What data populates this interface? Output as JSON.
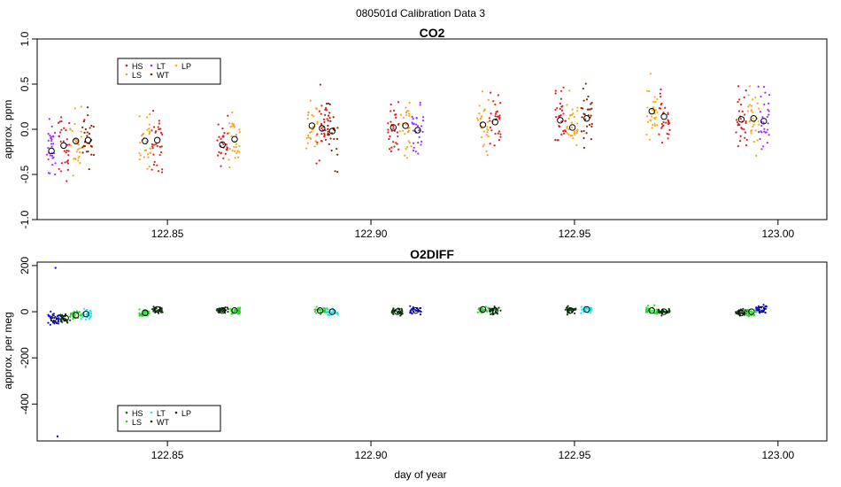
{
  "title": "080501d   Calibration Data 3",
  "xlabel": "day of year",
  "chart_data": [
    {
      "type": "scatter",
      "title": "CO2",
      "ylabel": "approx. ppm",
      "xlim": [
        122.818,
        123.012
      ],
      "ylim": [
        -1.0,
        1.0
      ],
      "xticks": [
        "122.85",
        "122.90",
        "122.95",
        "123.00"
      ],
      "xtick_values": [
        122.85,
        122.9,
        122.95,
        123.0
      ],
      "yticks": [
        "-1.0",
        "-0.5",
        "0.0",
        "0.5",
        "1.0"
      ],
      "ytick_values": [
        -1.0,
        -0.5,
        0.0,
        0.5,
        1.0
      ],
      "legend": {
        "placement": "top-left",
        "entries": [
          {
            "label": "HS",
            "color": "#e41a1c"
          },
          {
            "label": "LS",
            "color": "#f5a623"
          },
          {
            "label": "LT",
            "color": "#9b30ff"
          },
          {
            "label": "WT",
            "color": "#8b2500"
          },
          {
            "label": "LP",
            "color": "#ffb000"
          }
        ]
      },
      "groups": [
        {
          "x": 122.8215,
          "y": -0.24,
          "spread": 0.28,
          "color": "#9b30ff"
        },
        {
          "x": 122.8245,
          "y": -0.18,
          "spread": 0.32,
          "color": "#e41a1c"
        },
        {
          "x": 122.8275,
          "y": -0.13,
          "spread": 0.3,
          "color": "#f5a623"
        },
        {
          "x": 122.8305,
          "y": -0.12,
          "spread": 0.28,
          "color": "#8b2500"
        },
        {
          "x": 122.8445,
          "y": -0.13,
          "spread": 0.32,
          "color": "#f5a623"
        },
        {
          "x": 122.8475,
          "y": -0.12,
          "spread": 0.28,
          "color": "#e41a1c"
        },
        {
          "x": 122.8635,
          "y": -0.17,
          "spread": 0.28,
          "color": "#e41a1c"
        },
        {
          "x": 122.8665,
          "y": -0.11,
          "spread": 0.25,
          "color": "#f5a623"
        },
        {
          "x": 122.8855,
          "y": 0.04,
          "spread": 0.3,
          "color": "#f5a623"
        },
        {
          "x": 122.888,
          "y": 0.01,
          "spread": 0.33,
          "color": "#e41a1c"
        },
        {
          "x": 122.8905,
          "y": -0.02,
          "spread": 0.32,
          "color": "#8b2500"
        },
        {
          "x": 122.9055,
          "y": 0.02,
          "spread": 0.28,
          "color": "#e41a1c"
        },
        {
          "x": 122.9085,
          "y": 0.04,
          "spread": 0.3,
          "color": "#f5a623"
        },
        {
          "x": 122.9115,
          "y": -0.01,
          "spread": 0.28,
          "color": "#9b30ff"
        },
        {
          "x": 122.9275,
          "y": 0.05,
          "spread": 0.3,
          "color": "#f5a623"
        },
        {
          "x": 122.9305,
          "y": 0.08,
          "spread": 0.28,
          "color": "#e41a1c"
        },
        {
          "x": 122.9465,
          "y": 0.1,
          "spread": 0.28,
          "color": "#e41a1c"
        },
        {
          "x": 122.9495,
          "y": 0.02,
          "spread": 0.3,
          "color": "#f5a623"
        },
        {
          "x": 122.953,
          "y": 0.12,
          "spread": 0.28,
          "color": "#8b2500"
        },
        {
          "x": 122.969,
          "y": 0.2,
          "spread": 0.3,
          "color": "#ffb000"
        },
        {
          "x": 122.972,
          "y": 0.14,
          "spread": 0.28,
          "color": "#e41a1c"
        },
        {
          "x": 122.991,
          "y": 0.11,
          "spread": 0.3,
          "color": "#e41a1c"
        },
        {
          "x": 122.994,
          "y": 0.12,
          "spread": 0.32,
          "color": "#f5a623"
        },
        {
          "x": 122.9965,
          "y": 0.09,
          "spread": 0.28,
          "color": "#9b30ff"
        }
      ]
    },
    {
      "type": "scatter",
      "title": "O2DIFF",
      "ylabel": "approx. per meg",
      "xlim": [
        122.818,
        123.012
      ],
      "ylim": [
        -560,
        215
      ],
      "xticks": [
        "122.85",
        "122.90",
        "122.95",
        "123.00"
      ],
      "xtick_values": [
        122.85,
        122.9,
        122.95,
        123.0
      ],
      "yticks": [
        "-400",
        "-200",
        "0",
        "200"
      ],
      "ytick_values": [
        -400,
        -200,
        0,
        200
      ],
      "legend": {
        "placement": "bottom-left",
        "entries": [
          {
            "label": "HS",
            "color": "#1a6b1a"
          },
          {
            "label": "LS",
            "color": "#22dd22"
          },
          {
            "label": "LT",
            "color": "#22e0f0"
          },
          {
            "label": "WT",
            "color": "#0b3d0b"
          },
          {
            "label": "LP",
            "color": "#0b3d0b"
          }
        ]
      },
      "outliers": [
        {
          "x": 122.8225,
          "y": 190,
          "color": "#1010cc"
        },
        {
          "x": 122.823,
          "y": -540,
          "color": "#1010cc"
        }
      ],
      "groups": [
        {
          "x": 122.822,
          "y": -30,
          "spread": 25,
          "color": "#1010cc"
        },
        {
          "x": 122.825,
          "y": -28,
          "spread": 18,
          "color": "#0b3d0b"
        },
        {
          "x": 122.8275,
          "y": -15,
          "spread": 15,
          "color": "#22dd22"
        },
        {
          "x": 122.83,
          "y": -10,
          "spread": 18,
          "color": "#22e0f0"
        },
        {
          "x": 122.8445,
          "y": -5,
          "spread": 15,
          "color": "#22dd22"
        },
        {
          "x": 122.8475,
          "y": 10,
          "spread": 15,
          "color": "#0b3d0b"
        },
        {
          "x": 122.8635,
          "y": 5,
          "spread": 15,
          "color": "#0b3d0b"
        },
        {
          "x": 122.8665,
          "y": 5,
          "spread": 15,
          "color": "#22dd22"
        },
        {
          "x": 122.8875,
          "y": 5,
          "spread": 15,
          "color": "#22dd22"
        },
        {
          "x": 122.8905,
          "y": 0,
          "spread": 18,
          "color": "#22e0f0"
        },
        {
          "x": 122.9065,
          "y": 0,
          "spread": 15,
          "color": "#0b3d0b"
        },
        {
          "x": 122.911,
          "y": 5,
          "spread": 15,
          "color": "#1010cc"
        },
        {
          "x": 122.9275,
          "y": 10,
          "spread": 15,
          "color": "#22dd22"
        },
        {
          "x": 122.9305,
          "y": 5,
          "spread": 15,
          "color": "#0b3d0b"
        },
        {
          "x": 122.949,
          "y": 5,
          "spread": 12,
          "color": "#0b3d0b"
        },
        {
          "x": 122.953,
          "y": 10,
          "spread": 12,
          "color": "#22e0f0"
        },
        {
          "x": 122.969,
          "y": 5,
          "spread": 15,
          "color": "#22dd22"
        },
        {
          "x": 122.972,
          "y": 0,
          "spread": 12,
          "color": "#0b3d0b"
        },
        {
          "x": 122.991,
          "y": -5,
          "spread": 15,
          "color": "#0b3d0b"
        },
        {
          "x": 122.9935,
          "y": 0,
          "spread": 15,
          "color": "#22dd22"
        },
        {
          "x": 122.996,
          "y": 10,
          "spread": 15,
          "color": "#1010cc"
        }
      ]
    }
  ]
}
